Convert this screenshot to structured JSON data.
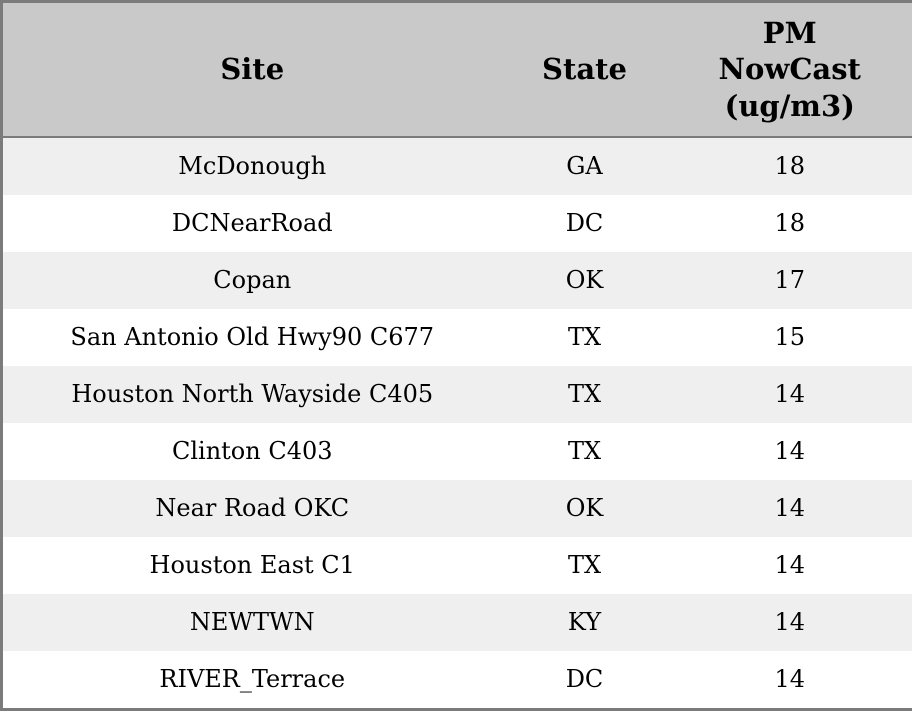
{
  "table": {
    "columns": {
      "site": "Site",
      "state": "State",
      "pm": "PM\nNowCast\n(ug/m3)"
    },
    "rows": [
      {
        "site": "McDonough",
        "state": "GA",
        "pm": "18"
      },
      {
        "site": "DCNearRoad",
        "state": "DC",
        "pm": "18"
      },
      {
        "site": "Copan",
        "state": "OK",
        "pm": "17"
      },
      {
        "site": "San Antonio Old Hwy90 C677",
        "state": "TX",
        "pm": "15"
      },
      {
        "site": "Houston North Wayside C405",
        "state": "TX",
        "pm": "14"
      },
      {
        "site": "Clinton C403",
        "state": "TX",
        "pm": "14"
      },
      {
        "site": "Near Road OKC",
        "state": "OK",
        "pm": "14"
      },
      {
        "site": "Houston East C1",
        "state": "TX",
        "pm": "14"
      },
      {
        "site": "NEWTWN",
        "state": "KY",
        "pm": "14"
      },
      {
        "site": "RIVER_Terrace",
        "state": "DC",
        "pm": "14"
      }
    ]
  },
  "colors": {
    "header_bg": "#c9c9c9",
    "row_alt_bg": "#efefef",
    "row_bg": "#ffffff",
    "border": "#7b7b7b",
    "text": "#000000"
  },
  "chart_data": {
    "type": "table",
    "title": "",
    "columns": [
      "Site",
      "State",
      "PM NowCast (ug/m3)"
    ],
    "rows": [
      [
        "McDonough",
        "GA",
        18
      ],
      [
        "DCNearRoad",
        "DC",
        18
      ],
      [
        "Copan",
        "OK",
        17
      ],
      [
        "San Antonio Old Hwy90 C677",
        "TX",
        15
      ],
      [
        "Houston North Wayside C405",
        "TX",
        14
      ],
      [
        "Clinton C403",
        "TX",
        14
      ],
      [
        "Near Road OKC",
        "OK",
        14
      ],
      [
        "Houston East C1",
        "TX",
        14
      ],
      [
        "NEWTWN",
        "KY",
        14
      ],
      [
        "RIVER_Terrace",
        "DC",
        14
      ]
    ]
  }
}
